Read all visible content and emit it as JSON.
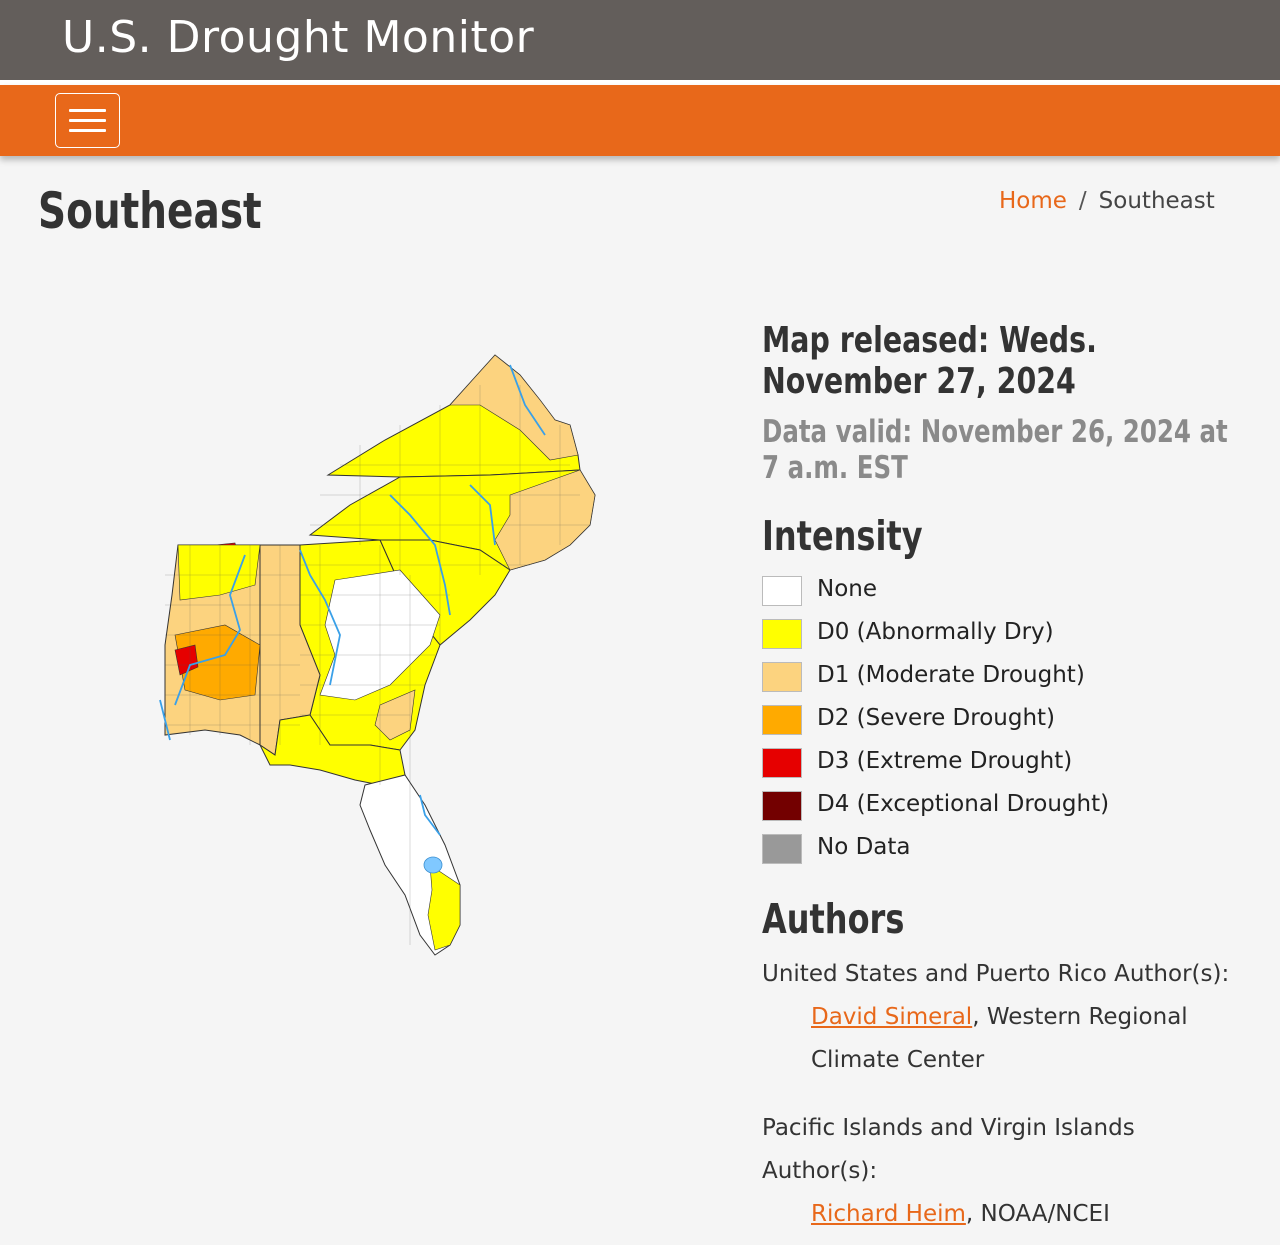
{
  "header": {
    "site_title": "U.S. Drought Monitor"
  },
  "page": {
    "title": "Southeast",
    "breadcrumb": {
      "home": "Home",
      "separator": "/",
      "current": "Southeast"
    }
  },
  "map_info": {
    "released": "Map released: Weds. November 27, 2024",
    "valid": "Data valid: November 26, 2024 at 7 a.m. EST"
  },
  "legend": {
    "title": "Intensity",
    "items": [
      {
        "code": "None",
        "desc": "",
        "color": "#ffffff"
      },
      {
        "code": "D0",
        "desc": "(Abnormally Dry)",
        "color": "#ffff00"
      },
      {
        "code": "D1",
        "desc": "(Moderate Drought)",
        "color": "#fcd37f"
      },
      {
        "code": "D2",
        "desc": "(Severe Drought)",
        "color": "#ffaa00"
      },
      {
        "code": "D3",
        "desc": "(Extreme Drought)",
        "color": "#e60000"
      },
      {
        "code": "D4",
        "desc": "(Exceptional Drought)",
        "color": "#730000"
      },
      {
        "code": "No Data",
        "desc": "",
        "color": "#999999"
      }
    ]
  },
  "authors": {
    "title": "Authors",
    "groups": [
      {
        "label": "United States and Puerto Rico Author(s):",
        "name": "David Simeral",
        "affiliation": ", Western Regional Climate Center"
      },
      {
        "label": "Pacific Islands and Virgin Islands Author(s):",
        "name": "Richard Heim",
        "affiliation": ", NOAA/NCEI"
      }
    ]
  }
}
